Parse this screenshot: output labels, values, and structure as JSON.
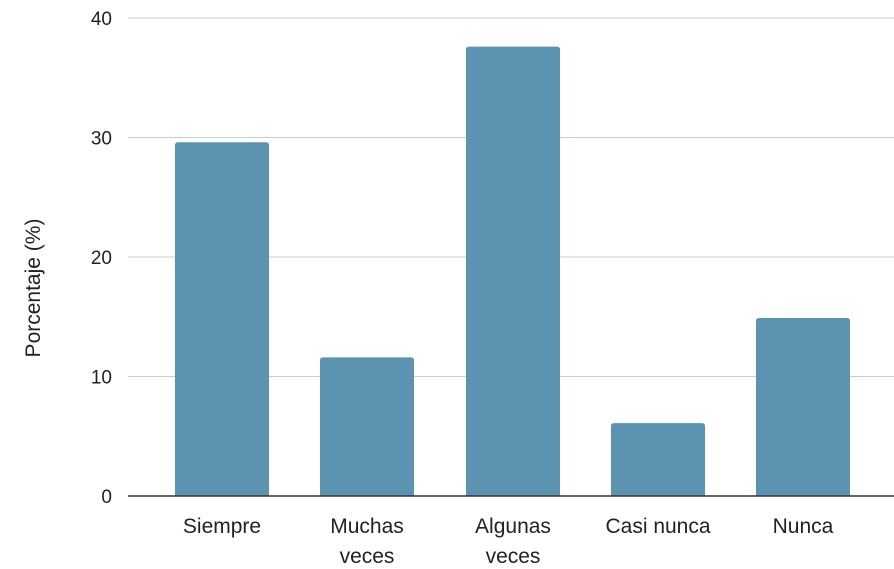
{
  "chart_data": {
    "type": "bar",
    "categories": [
      [
        "Siempre"
      ],
      [
        "Muchas",
        "veces"
      ],
      [
        "Algunas",
        "veces"
      ],
      [
        "Casi nunca"
      ],
      [
        "Nunca"
      ]
    ],
    "values": [
      29.6,
      11.6,
      37.6,
      6.1,
      14.9
    ],
    "ylabel": "Porcentaje (%)",
    "xlabel": "",
    "ylim": [
      0,
      40
    ],
    "yticks": [
      0,
      10,
      20,
      30,
      40
    ],
    "grid": true,
    "bar_color": "#5b93b0"
  }
}
